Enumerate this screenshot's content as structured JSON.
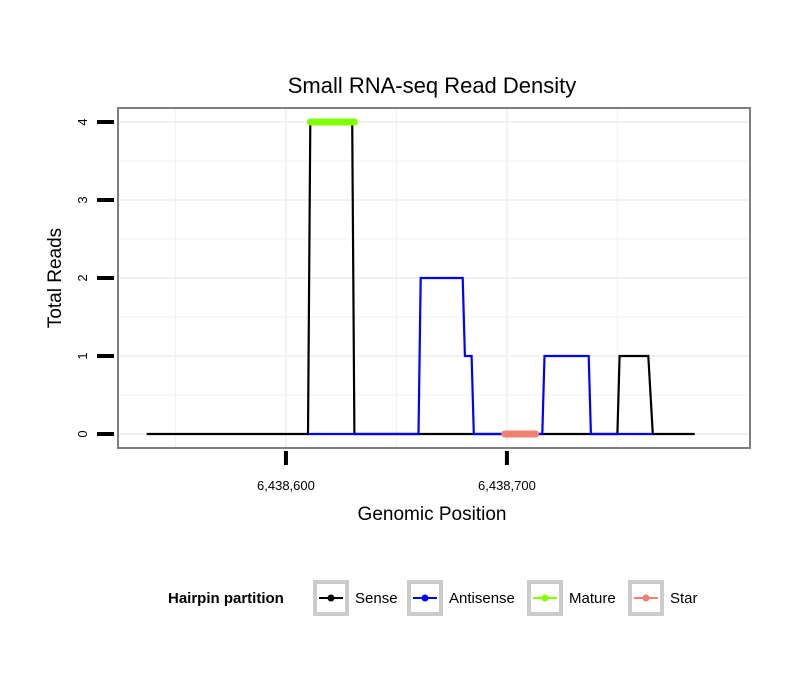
{
  "chart_data": {
    "type": "line",
    "title": "Small RNA-seq Read Density",
    "xlabel": "Genomic Position",
    "ylabel": "Total Reads",
    "xlim": [
      6438524,
      6438810
    ],
    "ylim": [
      -0.18,
      4.18
    ],
    "x_ticks": [
      {
        "value": 6438600,
        "label": "6,438,600"
      },
      {
        "value": 6438700,
        "label": "6,438,700"
      }
    ],
    "y_ticks": [
      {
        "value": 0,
        "label": "0"
      },
      {
        "value": 1,
        "label": "1"
      },
      {
        "value": 2,
        "label": "2"
      },
      {
        "value": 3,
        "label": "3"
      },
      {
        "value": 4,
        "label": "4"
      }
    ],
    "grid": true,
    "legend_title": "Hairpin partition",
    "legend_position": "bottom",
    "series": [
      {
        "name": "Sense",
        "color": "#000000",
        "x": [
          6438537,
          6438610,
          6438611,
          6438630,
          6438631,
          6438750,
          6438751,
          6438764,
          6438766,
          6438785
        ],
        "y": [
          0,
          0,
          4,
          4,
          0,
          0,
          1,
          1,
          0,
          0
        ]
      },
      {
        "name": "Antisense",
        "color": "#0000ff",
        "x": [
          6438610,
          6438660,
          6438661,
          6438680,
          6438681,
          6438684,
          6438685,
          6438716,
          6438717,
          6438737,
          6438738,
          6438750,
          6438751,
          6438766
        ],
        "y": [
          0,
          0,
          2,
          2,
          1,
          1,
          0,
          0,
          1,
          1,
          0,
          0,
          0,
          0
        ]
      },
      {
        "name": "Mature",
        "color": "#7fff00",
        "x": [
          6438611,
          6438631
        ],
        "y": [
          4,
          4
        ]
      },
      {
        "name": "Star",
        "color": "#f08070",
        "x": [
          6438699,
          6438713
        ],
        "y": [
          0,
          0
        ]
      }
    ]
  }
}
